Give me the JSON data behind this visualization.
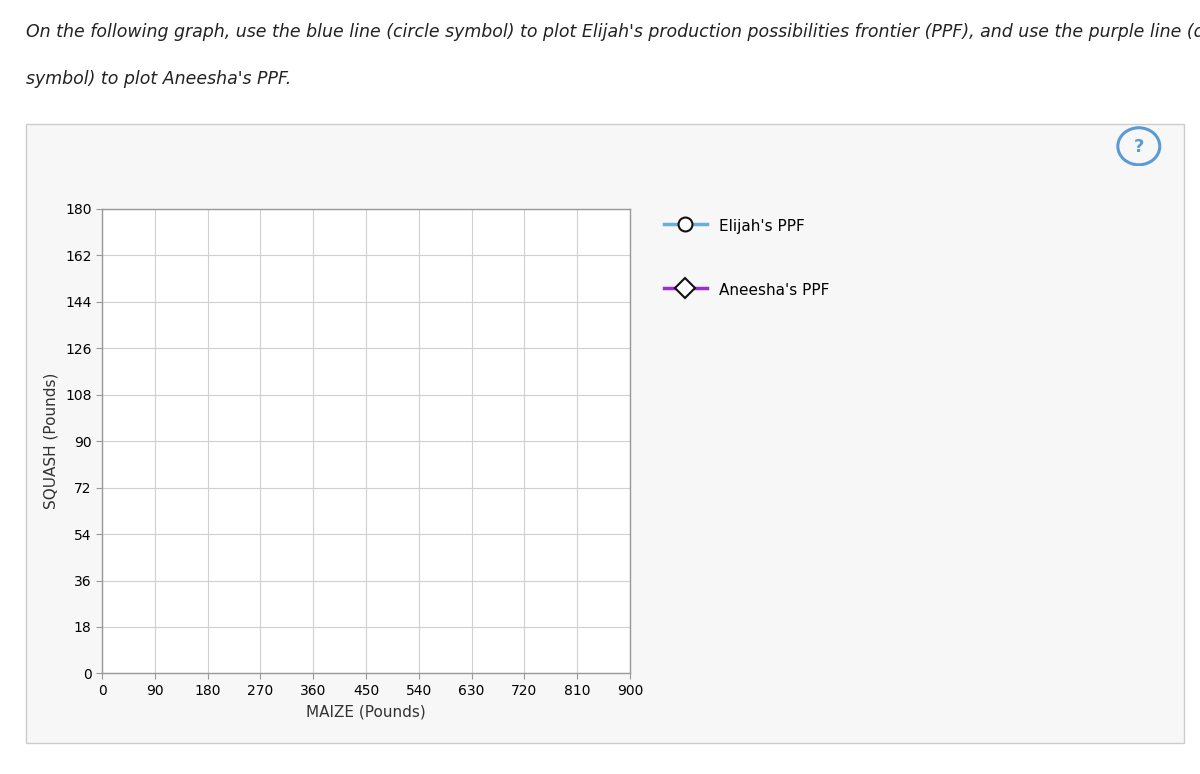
{
  "title_line1": "On the following graph, use the blue line (circle symbol) to plot Elijah's production possibilities frontier (PPF), and use the purple line (diamond",
  "title_line2": "symbol) to plot Aneesha's PPF.",
  "xlabel": "MAIZE (Pounds)",
  "ylabel": "SQUASH (Pounds)",
  "x_ticks": [
    0,
    90,
    180,
    270,
    360,
    450,
    540,
    630,
    720,
    810,
    900
  ],
  "y_ticks": [
    0,
    18,
    36,
    54,
    72,
    90,
    108,
    126,
    144,
    162,
    180
  ],
  "xlim": [
    0,
    900
  ],
  "ylim": [
    0,
    180
  ],
  "elijah_color": "#6baed6",
  "aneesha_color": "#9932CC",
  "legend_elijah": "Elijah's PPF",
  "legend_aneesha": "Aneesha's PPF",
  "background_color": "#ffffff",
  "plot_bg_color": "#ffffff",
  "panel_bg_color": "#f7f7f7",
  "grid_color": "#d0d0d0",
  "title_fontsize": 12.5,
  "axis_label_fontsize": 11,
  "tick_fontsize": 10,
  "legend_fontsize": 11,
  "qmark_color": "#5b9bd5"
}
